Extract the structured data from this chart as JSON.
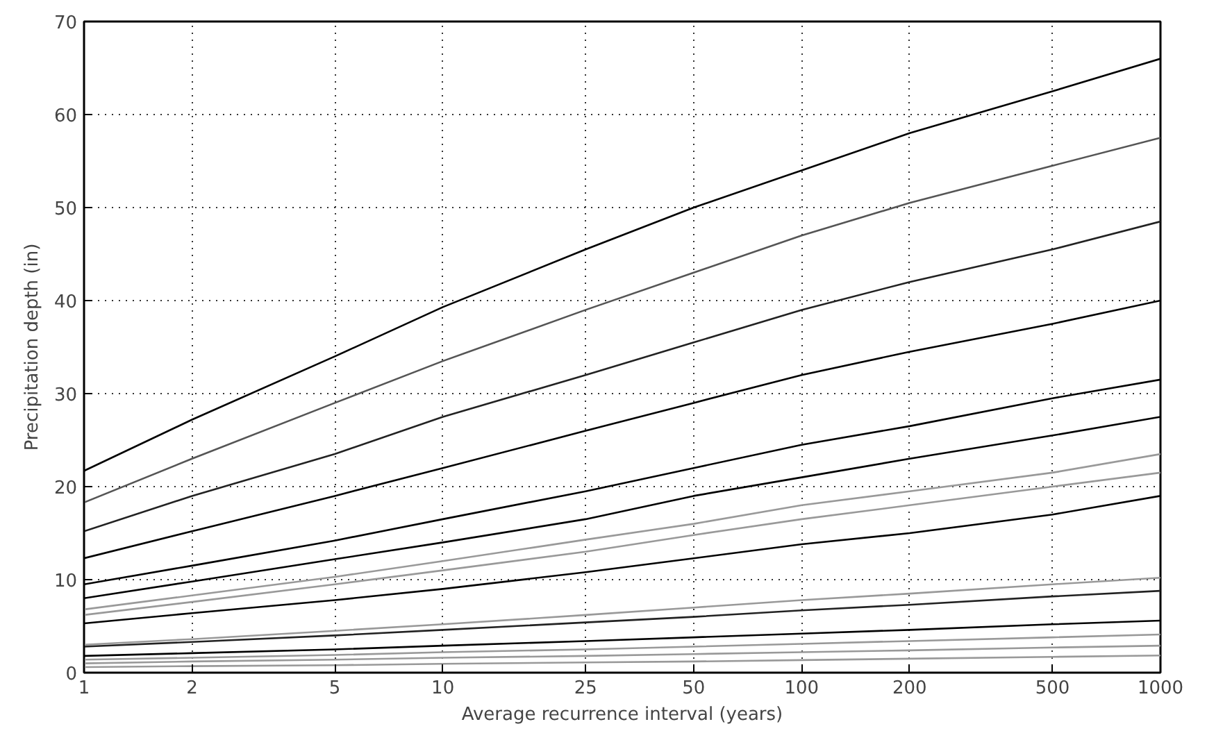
{
  "chart_data": {
    "type": "line",
    "xlabel": "Average recurrence interval (years)",
    "ylabel": "Precipitation depth (in)",
    "x": [
      1,
      2,
      5,
      10,
      25,
      50,
      100,
      200,
      500,
      1000
    ],
    "log": "x",
    "xlim": [
      1,
      1000
    ],
    "xticks": [
      1,
      2,
      5,
      10,
      25,
      50,
      100,
      200,
      500,
      1000
    ],
    "ylim": [
      0,
      70
    ],
    "yticks": [
      0,
      10,
      20,
      30,
      40,
      50,
      60,
      70
    ],
    "grid": true,
    "line_style": "solid",
    "series": [
      {
        "color": "#000000",
        "values": [
          21.7,
          27.2,
          34,
          39.3,
          45.5,
          50,
          54,
          58,
          62.5,
          66
        ]
      },
      {
        "color": "#555555",
        "values": [
          18.3,
          23,
          29,
          33.5,
          39,
          43,
          47,
          50.5,
          54.5,
          57.5
        ]
      },
      {
        "color": "#222222",
        "values": [
          15.2,
          19,
          23.5,
          27.5,
          32,
          35.5,
          39,
          42,
          45.5,
          48.5
        ]
      },
      {
        "color": "#000000",
        "values": [
          12.3,
          15.2,
          19,
          22,
          26,
          29,
          32,
          34.5,
          37.5,
          40
        ]
      },
      {
        "color": "#000000",
        "values": [
          9.5,
          11.5,
          14.2,
          16.5,
          19.5,
          22,
          24.5,
          26.5,
          29.5,
          31.5
        ]
      },
      {
        "color": "#000000",
        "values": [
          8.0,
          9.8,
          12.2,
          14,
          16.5,
          19,
          21,
          23,
          25.5,
          27.5
        ]
      },
      {
        "color": "#999999",
        "values": [
          6.8,
          8.3,
          10.3,
          12,
          14.3,
          16,
          18,
          19.5,
          21.5,
          23.5
        ]
      },
      {
        "color": "#999999",
        "values": [
          6.2,
          7.6,
          9.5,
          11,
          13,
          14.8,
          16.5,
          18,
          20,
          21.5
        ]
      },
      {
        "color": "#000000",
        "values": [
          5.3,
          6.4,
          7.8,
          9,
          10.8,
          12.3,
          13.8,
          15,
          17,
          19
        ]
      },
      {
        "color": "#999999",
        "values": [
          3,
          3.6,
          4.5,
          5.2,
          6.2,
          7,
          7.8,
          8.5,
          9.5,
          10.2
        ]
      },
      {
        "color": "#222222",
        "values": [
          2.8,
          3.3,
          4,
          4.6,
          5.4,
          6,
          6.7,
          7.3,
          8.2,
          8.8
        ]
      },
      {
        "color": "#000000",
        "values": [
          1.8,
          2.1,
          2.5,
          2.9,
          3.4,
          3.8,
          4.2,
          4.6,
          5.2,
          5.6
        ]
      },
      {
        "color": "#999999",
        "values": [
          1.4,
          1.6,
          1.9,
          2.2,
          2.5,
          2.8,
          3.1,
          3.4,
          3.8,
          4.1
        ]
      },
      {
        "color": "#999999",
        "values": [
          1.0,
          1.2,
          1.4,
          1.6,
          1.8,
          2,
          2.2,
          2.4,
          2.7,
          2.9
        ]
      },
      {
        "color": "#999999",
        "values": [
          0.6,
          0.7,
          0.8,
          0.95,
          1.1,
          1.2,
          1.35,
          1.5,
          1.7,
          1.85
        ]
      }
    ]
  }
}
